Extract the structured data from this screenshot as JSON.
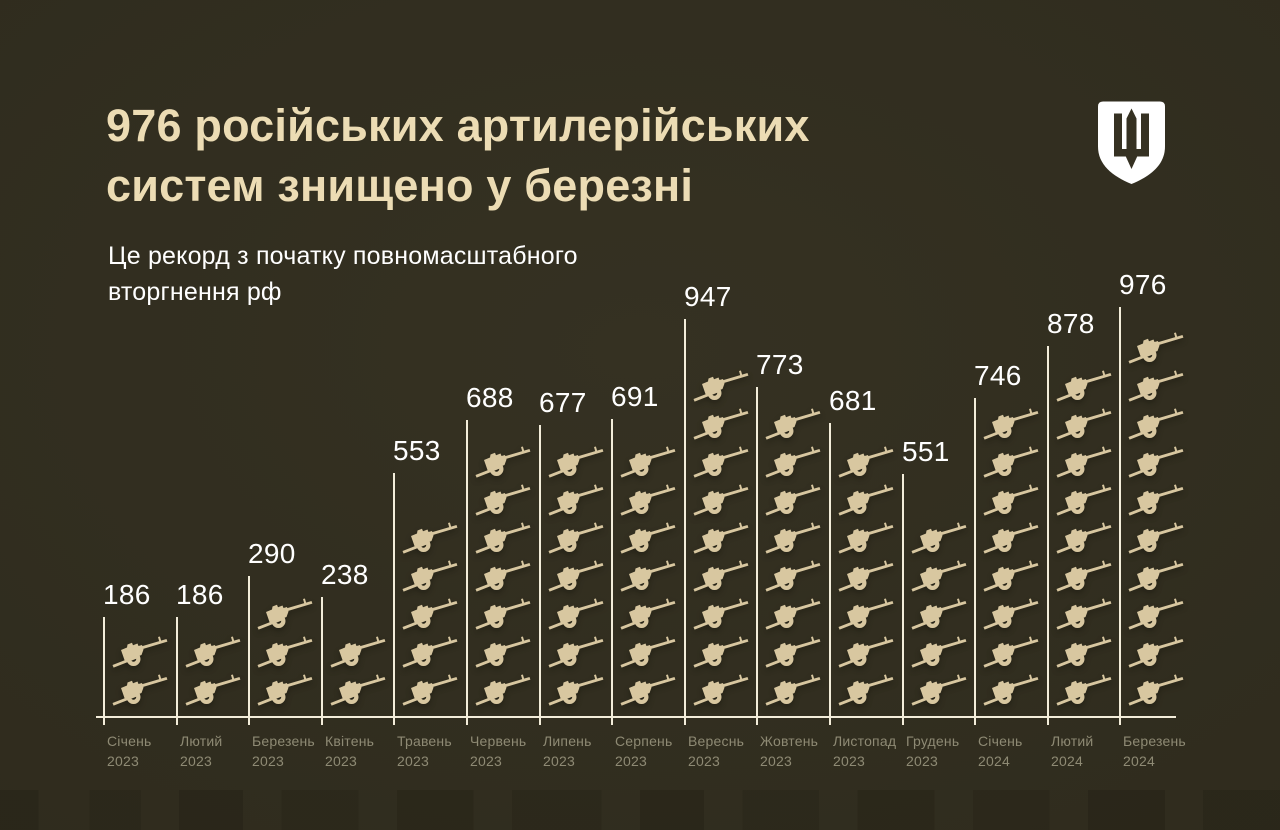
{
  "header": {
    "title_line1": "976 російських артилерійських",
    "title_line2": "систем знищено у березні",
    "subtitle_line1": "Це рекорд з початку повномасштабного",
    "subtitle_line2": "вторгнення рф"
  },
  "logo": {
    "icon": "trident-shield-icon",
    "description": "Емблема Міністерства оборони України"
  },
  "colors": {
    "background": "#353122",
    "background_edge": "#2b281b",
    "title": "#ecdcb4",
    "subtitle": "#ffffff",
    "value_label": "#ffffff",
    "icon": "#d8c7a0",
    "axis_line": "#f3edda",
    "month_label": "#8e8a74"
  },
  "chart_data": {
    "type": "bar",
    "style": "pictogram-bar",
    "title": "976 російських артилерійських систем знищено у березні",
    "subtitle": "Це рекорд з початку повномасштабного вторгнення рф",
    "unit_icon": "cannon-icon",
    "approx_units_per_icon": 100,
    "categories": [
      "Січень 2023",
      "Лютий 2023",
      "Березень 2023",
      "Квітень 2023",
      "Травень 2023",
      "Червень 2023",
      "Липень 2023",
      "Серпень 2023",
      "Вереснь 2023",
      "Жовтень 2023",
      "Листопад 2023",
      "Грудень 2023",
      "Січень 2024",
      "Лютий 2024",
      "Березень 2024"
    ],
    "values": [
      186,
      186,
      290,
      238,
      553,
      688,
      677,
      691,
      947,
      773,
      681,
      551,
      746,
      878,
      976
    ],
    "icon_counts": [
      2,
      2,
      3,
      2,
      5,
      7,
      7,
      7,
      9,
      8,
      7,
      5,
      8,
      9,
      10
    ],
    "ylim": [
      0,
      1000
    ],
    "grid": false,
    "legend": "none"
  }
}
